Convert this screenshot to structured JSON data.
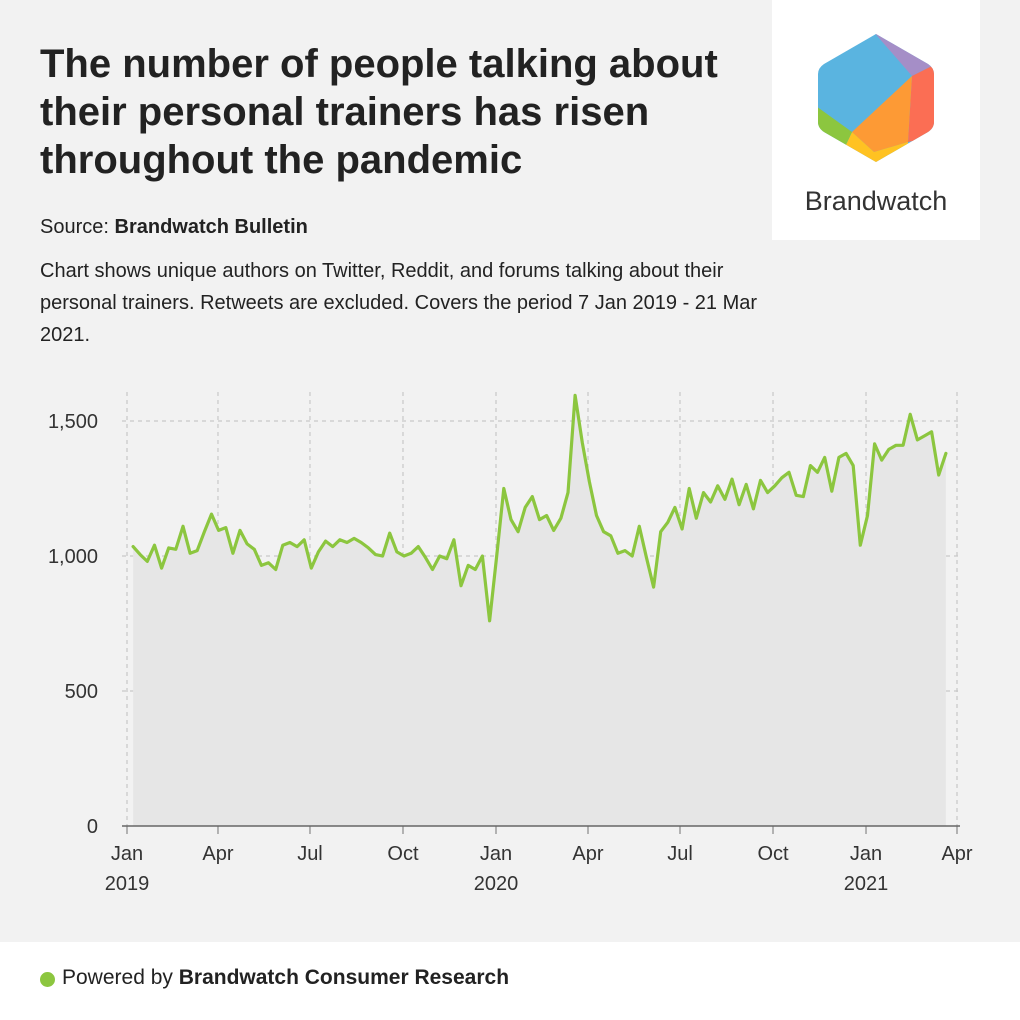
{
  "header": {
    "title": "The number of people talking about their personal trainers has risen throughout the pandemic",
    "source_label": "Source:",
    "source_name": "Brandwatch Bulletin",
    "description": "Chart shows unique authors on Twitter, Reddit, and forums talking about their personal trainers. Retweets are excluded. Covers the period 7 Jan 2019 - 21 Mar 2021."
  },
  "logo": {
    "text": "Brandwatch",
    "icon": "brandwatch-hexagon-icon"
  },
  "footer": {
    "prefix": "Powered by",
    "name": "Brandwatch Consumer Research",
    "dot_color": "#8cc63f"
  },
  "colors": {
    "line": "#8cc63f",
    "area": "#e6e6e6",
    "grid": "#c8c8c8"
  },
  "chart_data": {
    "type": "area",
    "title": "",
    "xlabel": "",
    "ylabel": "",
    "ylim": [
      0,
      1600
    ],
    "x_start": "2019-01-07",
    "x_end": "2021-03-21",
    "y_ticks": [
      {
        "value": 0,
        "label": "0"
      },
      {
        "value": 500,
        "label": "500"
      },
      {
        "value": 1000,
        "label": "1,000"
      },
      {
        "value": 1500,
        "label": "1,500"
      }
    ],
    "x_ticks": [
      {
        "date": "2019-01-01",
        "label": "Jan",
        "year": "2019"
      },
      {
        "date": "2019-04-01",
        "label": "Apr",
        "year": ""
      },
      {
        "date": "2019-07-01",
        "label": "Jul",
        "year": ""
      },
      {
        "date": "2019-10-01",
        "label": "Oct",
        "year": ""
      },
      {
        "date": "2020-01-01",
        "label": "Jan",
        "year": "2020"
      },
      {
        "date": "2020-04-01",
        "label": "Apr",
        "year": ""
      },
      {
        "date": "2020-07-01",
        "label": "Jul",
        "year": ""
      },
      {
        "date": "2020-10-01",
        "label": "Oct",
        "year": ""
      },
      {
        "date": "2021-01-01",
        "label": "Jan",
        "year": "2021"
      },
      {
        "date": "2021-04-01",
        "label": "Apr",
        "year": ""
      }
    ],
    "grid": true,
    "series": [
      {
        "name": "",
        "values": [
          1035,
          1005,
          980,
          1040,
          955,
          1030,
          1025,
          1110,
          1010,
          1020,
          1090,
          1155,
          1095,
          1105,
          1010,
          1095,
          1045,
          1025,
          965,
          975,
          950,
          1040,
          1050,
          1035,
          1060,
          955,
          1015,
          1055,
          1035,
          1060,
          1050,
          1065,
          1050,
          1030,
          1005,
          1000,
          1085,
          1015,
          1000,
          1010,
          1035,
          995,
          950,
          1000,
          990,
          1060,
          890,
          965,
          950,
          1000,
          760,
          1000,
          1250,
          1135,
          1090,
          1180,
          1220,
          1135,
          1150,
          1095,
          1140,
          1235,
          1595,
          1420,
          1275,
          1150,
          1090,
          1075,
          1010,
          1020,
          1000,
          1110,
          995,
          885,
          1090,
          1125,
          1180,
          1100,
          1250,
          1140,
          1235,
          1200,
          1260,
          1210,
          1285,
          1190,
          1265,
          1175,
          1280,
          1235,
          1260,
          1290,
          1310,
          1225,
          1220,
          1335,
          1310,
          1365,
          1240,
          1365,
          1380,
          1335,
          1040,
          1150,
          1415,
          1355,
          1395,
          1410,
          1410,
          1525,
          1430,
          1445,
          1460,
          1300,
          1380
        ]
      }
    ]
  }
}
